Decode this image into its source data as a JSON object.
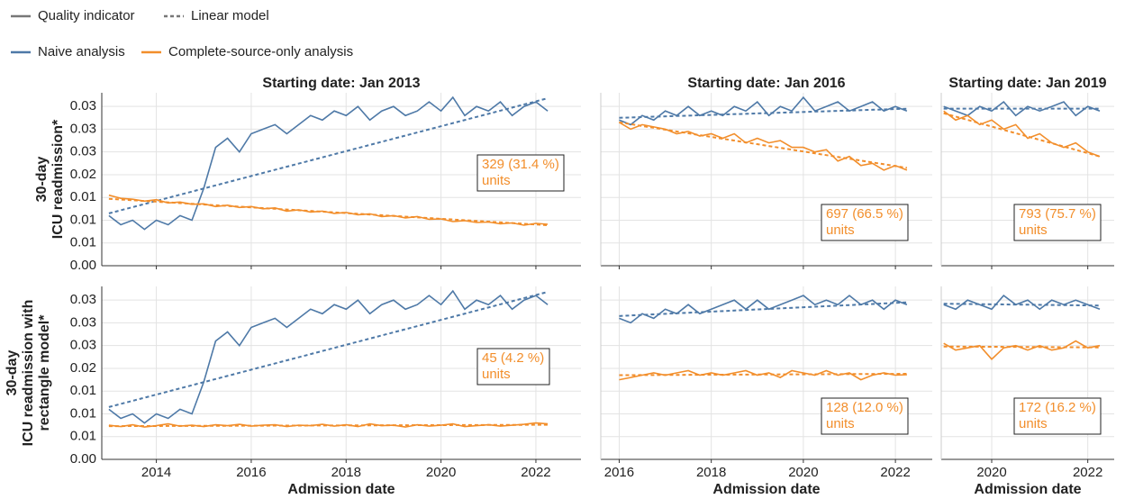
{
  "legend": {
    "styles": [
      "Quality indicator",
      "Linear model"
    ],
    "series": [
      {
        "name": "Naive analysis",
        "color": "#4e79a7"
      },
      {
        "name": "Complete-source-only analysis",
        "color": "#f28e2b"
      }
    ]
  },
  "chart_data": [
    {
      "type": "line",
      "title": "Starting date: Jan 2013",
      "ylabel": [
        "30-day",
        "ICU readmission*"
      ],
      "grid": true,
      "xlim": [
        2012.85,
        2022.95
      ],
      "xticks": [
        2014,
        2016,
        2018,
        2020,
        2022
      ],
      "ylim": [
        0,
        0.038
      ],
      "yticks": [
        {
          "value": 0,
          "label": "0.00"
        },
        {
          "value": 0.005,
          "label": "0.01"
        },
        {
          "value": 0.01,
          "label": "0.01"
        },
        {
          "value": 0.015,
          "label": "0.01"
        },
        {
          "value": 0.02,
          "label": "0.02"
        },
        {
          "value": 0.025,
          "label": "0.03"
        },
        {
          "value": 0.03,
          "label": "0.03"
        },
        {
          "value": 0.035,
          "label": "0.03"
        }
      ],
      "x": [
        2013,
        2013.25,
        2013.5,
        2013.75,
        2014,
        2014.25,
        2014.5,
        2014.75,
        2015,
        2015.25,
        2015.5,
        2015.75,
        2016,
        2016.25,
        2016.5,
        2016.75,
        2017,
        2017.25,
        2017.5,
        2017.75,
        2018,
        2018.25,
        2018.5,
        2018.75,
        2019,
        2019.25,
        2019.5,
        2019.75,
        2020,
        2020.25,
        2020.5,
        2020.75,
        2021,
        2021.25,
        2021.5,
        2021.75,
        2022,
        2022.25
      ],
      "series": [
        {
          "values": [
            0.011,
            0.009,
            0.01,
            0.008,
            0.01,
            0.009,
            0.011,
            0.01,
            0.017,
            0.026,
            0.028,
            0.025,
            0.029,
            0.03,
            0.031,
            0.029,
            0.031,
            0.033,
            0.032,
            0.034,
            0.033,
            0.035,
            0.032,
            0.034,
            0.035,
            0.033,
            0.034,
            0.036,
            0.034,
            0.037,
            0.033,
            0.035,
            0.034,
            0.036,
            0.033,
            0.035,
            0.036,
            0.034
          ],
          "model": [
            0.0115,
            0.0368
          ]
        },
        {
          "values": [
            0.0155,
            0.0148,
            0.0146,
            0.0142,
            0.0145,
            0.0138,
            0.014,
            0.0135,
            0.0136,
            0.013,
            0.0133,
            0.0128,
            0.013,
            0.0125,
            0.0127,
            0.012,
            0.0123,
            0.0118,
            0.012,
            0.0115,
            0.0117,
            0.0112,
            0.0114,
            0.0108,
            0.011,
            0.0105,
            0.0108,
            0.0102,
            0.0103,
            0.0097,
            0.0099,
            0.0095,
            0.0096,
            0.0092,
            0.0094,
            0.0089,
            0.0093,
            0.0091
          ],
          "model": [
            0.0147,
            0.0089
          ]
        }
      ],
      "annotation": [
        "329 (31.4 %)",
        "units"
      ]
    },
    {
      "type": "line",
      "title": "Starting date: Jan 2016",
      "grid": true,
      "xlim": [
        2015.6,
        2022.8
      ],
      "xticks": [
        2016,
        2018,
        2020,
        2022
      ],
      "ylim": [
        0,
        0.038
      ],
      "yticks": [
        0,
        0.005,
        0.01,
        0.015,
        0.02,
        0.025,
        0.03,
        0.035
      ],
      "x": [
        2016,
        2016.25,
        2016.5,
        2016.75,
        2017,
        2017.25,
        2017.5,
        2017.75,
        2018,
        2018.25,
        2018.5,
        2018.75,
        2019,
        2019.25,
        2019.5,
        2019.75,
        2020,
        2020.25,
        2020.5,
        2020.75,
        2021,
        2021.25,
        2021.5,
        2021.75,
        2022,
        2022.25
      ],
      "series": [
        {
          "values": [
            0.032,
            0.031,
            0.033,
            0.032,
            0.034,
            0.033,
            0.035,
            0.033,
            0.034,
            0.033,
            0.035,
            0.034,
            0.036,
            0.033,
            0.035,
            0.034,
            0.037,
            0.034,
            0.035,
            0.036,
            0.034,
            0.035,
            0.036,
            0.034,
            0.035,
            0.034
          ],
          "model": [
            0.0325,
            0.0345
          ]
        },
        {
          "values": [
            0.0315,
            0.03,
            0.031,
            0.0305,
            0.03,
            0.029,
            0.0295,
            0.0285,
            0.029,
            0.028,
            0.029,
            0.027,
            0.028,
            0.027,
            0.0275,
            0.026,
            0.026,
            0.025,
            0.0255,
            0.023,
            0.024,
            0.022,
            0.0225,
            0.021,
            0.022,
            0.021
          ],
          "model": [
            0.0315,
            0.0215
          ]
        }
      ],
      "annotation": [
        "697 (66.5 %)",
        "units"
      ]
    },
    {
      "type": "line",
      "title": "Starting date: Jan 2019",
      "grid": true,
      "xlim": [
        2018.95,
        2022.55
      ],
      "xticks": [
        2020,
        2022
      ],
      "ylim": [
        0,
        0.038
      ],
      "yticks": [
        0,
        0.005,
        0.01,
        0.015,
        0.02,
        0.025,
        0.03,
        0.035
      ],
      "x": [
        2019,
        2019.25,
        2019.5,
        2019.75,
        2020,
        2020.25,
        2020.5,
        2020.75,
        2021,
        2021.25,
        2021.5,
        2021.75,
        2022,
        2022.25
      ],
      "series": [
        {
          "values": [
            0.035,
            0.034,
            0.033,
            0.035,
            0.034,
            0.036,
            0.033,
            0.035,
            0.034,
            0.035,
            0.036,
            0.033,
            0.035,
            0.034
          ],
          "model": [
            0.0345,
            0.0345
          ]
        },
        {
          "values": [
            0.034,
            0.032,
            0.033,
            0.031,
            0.032,
            0.03,
            0.031,
            0.028,
            0.029,
            0.027,
            0.026,
            0.027,
            0.025,
            0.024
          ],
          "model": [
            0.0335,
            0.024
          ]
        }
      ],
      "annotation": [
        "793 (75.7 %)",
        "units"
      ]
    },
    {
      "type": "line",
      "ylabel": [
        "30-day",
        "ICU readmission with",
        "rectangle model*"
      ],
      "xlabel": "Admission date",
      "grid": true,
      "xlim": [
        2012.85,
        2022.95
      ],
      "xticks": [
        2014,
        2016,
        2018,
        2020,
        2022
      ],
      "ylim": [
        0,
        0.038
      ],
      "yticks": [
        {
          "value": 0,
          "label": "0.00"
        },
        {
          "value": 0.005,
          "label": "0.01"
        },
        {
          "value": 0.01,
          "label": "0.01"
        },
        {
          "value": 0.015,
          "label": "0.01"
        },
        {
          "value": 0.02,
          "label": "0.02"
        },
        {
          "value": 0.025,
          "label": "0.03"
        },
        {
          "value": 0.03,
          "label": "0.03"
        },
        {
          "value": 0.035,
          "label": "0.03"
        }
      ],
      "x": [
        2013,
        2013.25,
        2013.5,
        2013.75,
        2014,
        2014.25,
        2014.5,
        2014.75,
        2015,
        2015.25,
        2015.5,
        2015.75,
        2016,
        2016.25,
        2016.5,
        2016.75,
        2017,
        2017.25,
        2017.5,
        2017.75,
        2018,
        2018.25,
        2018.5,
        2018.75,
        2019,
        2019.25,
        2019.5,
        2019.75,
        2020,
        2020.25,
        2020.5,
        2020.75,
        2021,
        2021.25,
        2021.5,
        2021.75,
        2022,
        2022.25
      ],
      "series": [
        {
          "values": [
            0.011,
            0.009,
            0.01,
            0.008,
            0.01,
            0.009,
            0.011,
            0.01,
            0.017,
            0.026,
            0.028,
            0.025,
            0.029,
            0.03,
            0.031,
            0.029,
            0.031,
            0.033,
            0.032,
            0.034,
            0.033,
            0.035,
            0.032,
            0.034,
            0.035,
            0.033,
            0.034,
            0.036,
            0.034,
            0.037,
            0.033,
            0.035,
            0.034,
            0.036,
            0.033,
            0.035,
            0.036,
            0.034
          ],
          "model": [
            0.0115,
            0.0368
          ]
        },
        {
          "values": [
            0.0075,
            0.0072,
            0.0076,
            0.0071,
            0.0074,
            0.0078,
            0.0073,
            0.0075,
            0.0072,
            0.0076,
            0.0074,
            0.0077,
            0.0073,
            0.0075,
            0.0076,
            0.0072,
            0.0075,
            0.0074,
            0.0077,
            0.0073,
            0.0076,
            0.0072,
            0.0078,
            0.0074,
            0.0075,
            0.0071,
            0.0076,
            0.0073,
            0.0075,
            0.0078,
            0.0072,
            0.0074,
            0.0076,
            0.0073,
            0.0075,
            0.0077,
            0.008,
            0.0078
          ],
          "model": [
            0.0073,
            0.0076
          ]
        }
      ],
      "annotation": [
        "45 (4.2 %)",
        "units"
      ]
    },
    {
      "type": "line",
      "xlabel": "Admission date",
      "grid": true,
      "xlim": [
        2015.6,
        2022.8
      ],
      "xticks": [
        2016,
        2018,
        2020,
        2022
      ],
      "ylim": [
        0,
        0.038
      ],
      "yticks": [
        0,
        0.005,
        0.01,
        0.015,
        0.02,
        0.025,
        0.03,
        0.035
      ],
      "x": [
        2016,
        2016.25,
        2016.5,
        2016.75,
        2017,
        2017.25,
        2017.5,
        2017.75,
        2018,
        2018.25,
        2018.5,
        2018.75,
        2019,
        2019.25,
        2019.5,
        2019.75,
        2020,
        2020.25,
        2020.5,
        2020.75,
        2021,
        2021.25,
        2021.5,
        2021.75,
        2022,
        2022.25
      ],
      "series": [
        {
          "values": [
            0.031,
            0.03,
            0.032,
            0.031,
            0.033,
            0.032,
            0.034,
            0.032,
            0.033,
            0.034,
            0.035,
            0.033,
            0.035,
            0.033,
            0.034,
            0.035,
            0.036,
            0.034,
            0.035,
            0.034,
            0.036,
            0.034,
            0.035,
            0.033,
            0.035,
            0.034
          ],
          "model": [
            0.0315,
            0.0345
          ]
        },
        {
          "values": [
            0.0175,
            0.018,
            0.0185,
            0.019,
            0.0185,
            0.019,
            0.0195,
            0.0185,
            0.019,
            0.0185,
            0.019,
            0.0195,
            0.0185,
            0.019,
            0.018,
            0.0195,
            0.019,
            0.0185,
            0.0195,
            0.0185,
            0.019,
            0.0175,
            0.0185,
            0.019,
            0.0185,
            0.0186
          ],
          "model": [
            0.0185,
            0.0188
          ]
        }
      ],
      "annotation": [
        "128 (12.0 %)",
        "units"
      ]
    },
    {
      "type": "line",
      "xlabel": "Admission date",
      "grid": true,
      "xlim": [
        2018.95,
        2022.55
      ],
      "xticks": [
        2020,
        2022
      ],
      "ylim": [
        0,
        0.038
      ],
      "yticks": [
        0,
        0.005,
        0.01,
        0.015,
        0.02,
        0.025,
        0.03,
        0.035
      ],
      "x": [
        2019,
        2019.25,
        2019.5,
        2019.75,
        2020,
        2020.25,
        2020.5,
        2020.75,
        2021,
        2021.25,
        2021.5,
        2021.75,
        2022,
        2022.25
      ],
      "series": [
        {
          "values": [
            0.034,
            0.033,
            0.035,
            0.034,
            0.033,
            0.036,
            0.034,
            0.035,
            0.033,
            0.035,
            0.034,
            0.035,
            0.034,
            0.033
          ],
          "model": [
            0.0342,
            0.0338
          ]
        },
        {
          "values": [
            0.0255,
            0.024,
            0.0245,
            0.025,
            0.022,
            0.0245,
            0.025,
            0.024,
            0.025,
            0.024,
            0.0245,
            0.026,
            0.0245,
            0.025
          ],
          "model": [
            0.0248,
            0.0246
          ]
        }
      ],
      "annotation": [
        "172 (16.2 %)",
        "units"
      ]
    }
  ]
}
